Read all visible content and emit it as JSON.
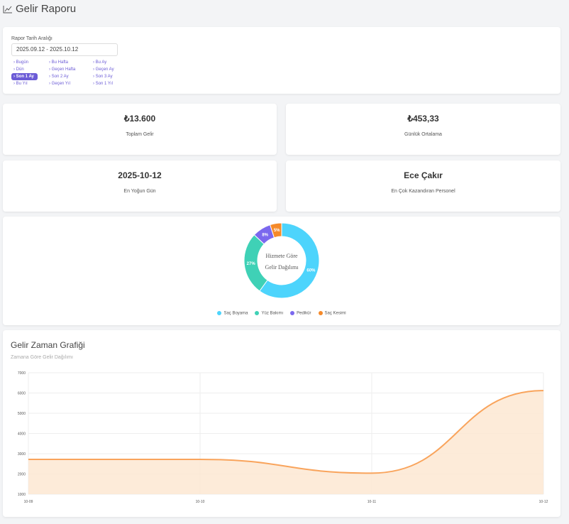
{
  "header": {
    "title": "Gelir Raporu",
    "icon": "chart-line-icon"
  },
  "filter": {
    "label": "Rapor Tarih Aralığı",
    "value": "2025.09.12 - 2025.10.12",
    "ranges": [
      "Bugün",
      "Bu Hafta",
      "Bu Ay",
      "Dün",
      "Geçen Hafta",
      "Geçen Ay",
      "Son 1 Ay",
      "Son 2 Ay",
      "Son 3 Ay",
      "Bu Yıl",
      "Geçen Yıl",
      "Son 1 Yıl"
    ],
    "active": "Son 1 Ay"
  },
  "stats": [
    {
      "value": "₺13.600",
      "label": "Toplam Gelir"
    },
    {
      "value": "₺453,33",
      "label": "Günlük Ortalama"
    },
    {
      "value": "2025-10-12",
      "label": "En Yoğun Gün"
    },
    {
      "value": "Ece Çakır",
      "label": "En Çok Kazandıran Personel"
    }
  ],
  "chart_data": [
    {
      "type": "pie",
      "title": "Hizmete Göre Gelir Dağılımı",
      "categories": [
        "Saç Boyama",
        "Yüz Bakımı",
        "Pedikür",
        "Saç Kesimi"
      ],
      "values": [
        60,
        27,
        8,
        5
      ],
      "labels": [
        "60%",
        "27%",
        "8%",
        "5%"
      ],
      "colors": [
        "#4dd4fc",
        "#3fd1b6",
        "#7b68ee",
        "#f58a2a"
      ],
      "legend": "bottom"
    },
    {
      "type": "area",
      "title": "Gelir Zaman Grafiği",
      "subtitle": "Zamana Göre Gelir Dağılımı",
      "categories": [
        "10-09",
        "10-10",
        "10-11",
        "10-12"
      ],
      "values": [
        2720,
        2720,
        2040,
        6120
      ],
      "ylim": [
        1000,
        7000
      ],
      "yticks": [
        "1000",
        "2000",
        "3000",
        "4000",
        "5000",
        "6000",
        "7000"
      ],
      "color": "#f9a45c",
      "grid": true
    }
  ]
}
